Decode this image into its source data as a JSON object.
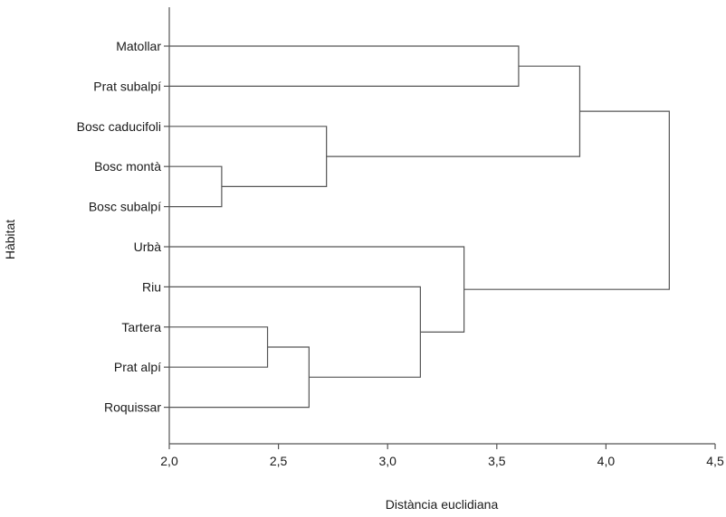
{
  "chart_data": {
    "type": "dendrogram",
    "xlabel": "Distància euclidiana",
    "ylabel": "Hàbitat",
    "xlim": [
      2.0,
      4.5
    ],
    "xticks": [
      "2,0",
      "2,5",
      "3,0",
      "3,5",
      "4,0",
      "4,5"
    ],
    "xtick_values": [
      2.0,
      2.5,
      3.0,
      3.5,
      4.0,
      4.5
    ],
    "leaves": [
      "Matollar",
      "Prat subalpí",
      "Bosc caducifoli",
      "Bosc montà",
      "Bosc subalpí",
      "Urbà",
      "Riu",
      "Tartera",
      "Prat alpí",
      "Roquissar"
    ],
    "merges": [
      {
        "left": "Bosc montà",
        "right": "Bosc subalpí",
        "distance": 2.24
      },
      {
        "left": "Tartera",
        "right": "Prat alpí",
        "distance": 2.45
      },
      {
        "left": "Tartera+Prat alpí",
        "right": "Roquissar",
        "distance": 2.64
      },
      {
        "left": "Bosc caducifoli",
        "right": "Bosc montà+Bosc subalpí",
        "distance": 2.72
      },
      {
        "left": "Riu",
        "right": "Tartera+Prat alpí+Roquissar",
        "distance": 3.15
      },
      {
        "left": "Urbà",
        "right": "Riu+Tartera+Prat alpí+Roquissar",
        "distance": 3.35
      },
      {
        "left": "Matollar",
        "right": "Prat subalpí",
        "distance": 3.6
      },
      {
        "left": "Matollar+Prat subalpí",
        "right": "Bosc caducifoli+Bosc montà+Bosc subalpí",
        "distance": 3.88
      },
      {
        "left": "forest/upper group",
        "right": "lower group",
        "distance": 4.29
      }
    ]
  }
}
